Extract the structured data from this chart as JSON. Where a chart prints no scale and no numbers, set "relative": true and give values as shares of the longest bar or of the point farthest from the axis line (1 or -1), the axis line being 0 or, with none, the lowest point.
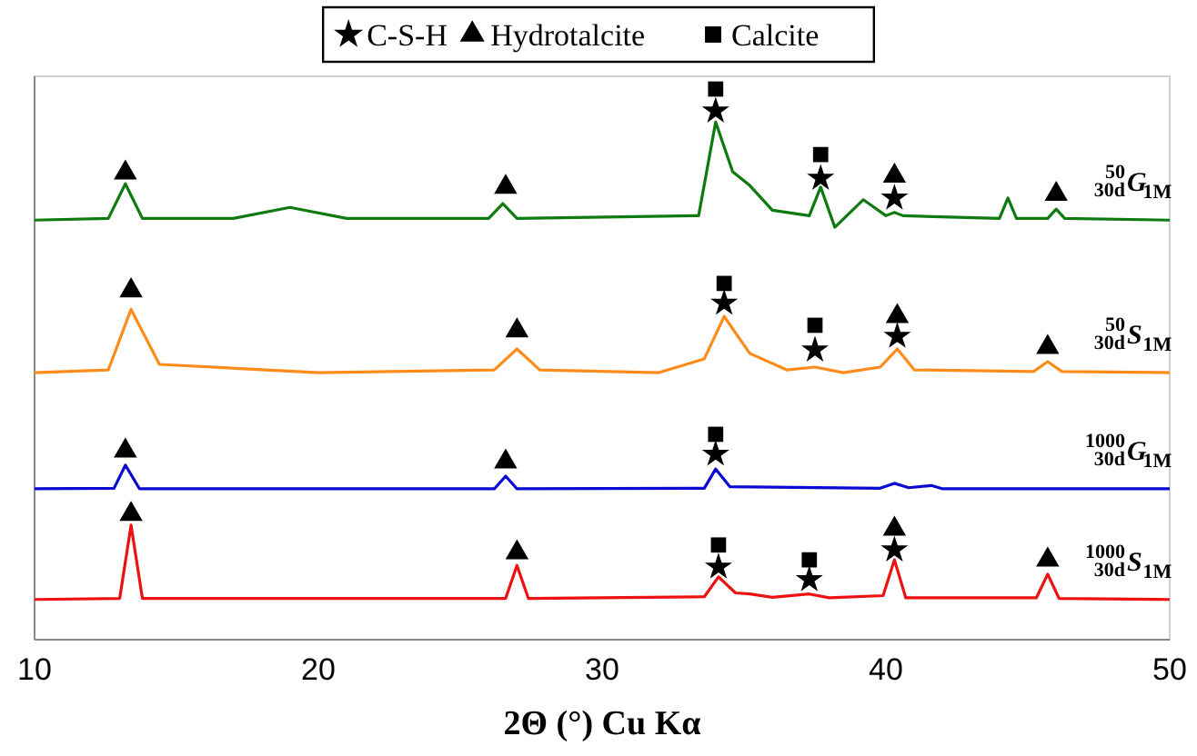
{
  "chart_data": {
    "type": "line",
    "relative": true,
    "xlabel": "2Θ (°) Cu Kα",
    "xlim": [
      10,
      50
    ],
    "xticks": [
      10,
      20,
      30,
      40,
      50
    ],
    "legend": "top",
    "grid": false,
    "series": [
      {
        "name": "$^{50}$$_{30d}$G$_{1M}$",
        "color": "#0f7a0f",
        "x": [
          10,
          12.6,
          13.2,
          13.8,
          17,
          19,
          21,
          26,
          26.5,
          27,
          33.4,
          34,
          34.6,
          35.2,
          36,
          37.3,
          37.7,
          38.2,
          39.2,
          40,
          40.3,
          40.6,
          44,
          44.3,
          44.6,
          45.7,
          46,
          46.3,
          50
        ],
        "values": [
          0.762,
          0.765,
          0.828,
          0.765,
          0.765,
          0.785,
          0.765,
          0.765,
          0.792,
          0.765,
          0.77,
          0.94,
          0.85,
          0.825,
          0.78,
          0.77,
          0.822,
          0.749,
          0.799,
          0.77,
          0.776,
          0.77,
          0.765,
          0.802,
          0.765,
          0.765,
          0.782,
          0.765,
          0.762
        ]
      },
      {
        "name": "$^{50}$$_{30d}$S$_{1M}$",
        "color": "#ff8c1a",
        "x": [
          10,
          12.6,
          13.4,
          14.4,
          20,
          26.2,
          27,
          27.8,
          32,
          33.6,
          34.3,
          35.2,
          36.5,
          37.5,
          38.5,
          39.8,
          40.4,
          41,
          45.2,
          45.7,
          46.2,
          50
        ],
        "values": [
          0.485,
          0.49,
          0.6,
          0.5,
          0.485,
          0.49,
          0.528,
          0.49,
          0.485,
          0.51,
          0.587,
          0.52,
          0.49,
          0.495,
          0.485,
          0.495,
          0.528,
          0.49,
          0.487,
          0.505,
          0.487,
          0.485
        ]
      },
      {
        "name": "$^{1000}$$_{30d}$G$_{1M}$",
        "color": "#0a0ad2",
        "x": [
          10,
          12.8,
          13.2,
          13.7,
          26.2,
          26.6,
          27,
          33.6,
          34,
          34.5,
          39.8,
          40.3,
          40.8,
          41.6,
          42,
          50
        ],
        "values": [
          0.274,
          0.275,
          0.317,
          0.274,
          0.274,
          0.297,
          0.274,
          0.275,
          0.31,
          0.278,
          0.275,
          0.284,
          0.276,
          0.28,
          0.274,
          0.274
        ]
      },
      {
        "name": "$^{1000}$$_{30d}$S$_{1M}$",
        "color": "#ee1111",
        "x": [
          10,
          13,
          13.4,
          13.8,
          26.6,
          27,
          27.4,
          33.6,
          34.1,
          34.7,
          35.2,
          36,
          37.3,
          38,
          39.9,
          40.3,
          40.7,
          45.3,
          45.7,
          46.1,
          50
        ],
        "values": [
          0.073,
          0.075,
          0.208,
          0.075,
          0.075,
          0.135,
          0.075,
          0.078,
          0.114,
          0.085,
          0.083,
          0.077,
          0.083,
          0.076,
          0.08,
          0.145,
          0.076,
          0.076,
          0.119,
          0.075,
          0.073
        ]
      },
      {
        "name": "C-S-H",
        "type": "scatter",
        "marker": "star",
        "color": "#000000",
        "x": [
          34,
          37.7,
          40.3,
          34.3,
          37.5,
          40.4,
          34,
          34.1,
          37.3,
          40.3
        ],
        "values": [
          0.96,
          0.838,
          0.802,
          0.611,
          0.526,
          0.551,
          0.337,
          0.132,
          0.109,
          0.163
        ]
      },
      {
        "name": "Hydrotalcite",
        "type": "scatter",
        "marker": "triangle",
        "color": "#000000",
        "x": [
          13.2,
          26.6,
          40.3,
          46,
          13.4,
          27,
          40.4,
          45.7,
          13.2,
          26.6,
          13.4,
          27,
          40.3,
          45.7
        ],
        "values": [
          0.848,
          0.822,
          0.842,
          0.809,
          0.634,
          0.561,
          0.587,
          0.531,
          0.343,
          0.323,
          0.228,
          0.158,
          0.201,
          0.145
        ]
      },
      {
        "name": "Calcite",
        "type": "scatter",
        "marker": "square",
        "color": "#000000",
        "x": [
          34,
          37.7,
          34.3,
          37.5,
          34,
          34.1,
          37.3
        ],
        "values": [
          1.0,
          0.881,
          0.647,
          0.571,
          0.373,
          0.172,
          0.145
        ]
      }
    ]
  }
}
